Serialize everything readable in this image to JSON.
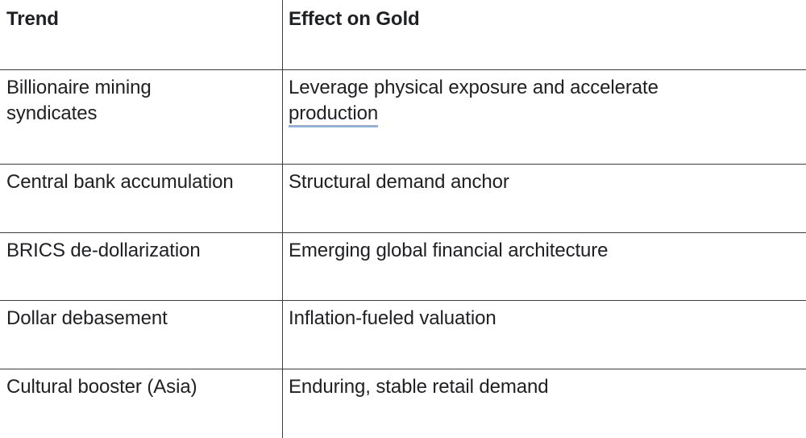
{
  "table": {
    "headers": [
      "Trend",
      "Effect on Gold"
    ],
    "rows": [
      {
        "trend_line1": "Billionaire mining",
        "trend_line2": "syndicates",
        "effect_line1": "Leverage physical exposure and accelerate",
        "effect_line2": "production"
      },
      {
        "trend": "Central bank accumulation",
        "effect": "Structural demand anchor"
      },
      {
        "trend": "BRICS de-dollarization",
        "effect": "Emerging global financial architecture"
      },
      {
        "trend": "Dollar debasement",
        "effect": "Inflation-fueled valuation"
      },
      {
        "trend": "Cultural booster (Asia)",
        "effect": "Enduring, stable retail demand"
      }
    ]
  },
  "colors": {
    "border": "#3c3c3c",
    "text": "#202124",
    "spellcheck_underline": "#8ab4e8"
  }
}
